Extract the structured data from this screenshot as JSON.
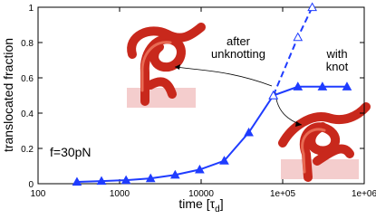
{
  "chart_data": {
    "type": "line",
    "xlabel": {
      "text": "time [τ",
      "subscript": "d",
      "suffix": "]"
    },
    "ylabel": "translocated fraction",
    "xscale": "log",
    "xlim": [
      100,
      1000000
    ],
    "ylim": [
      0,
      1
    ],
    "xticks": [
      100,
      1000,
      10000,
      {
        "value": 100000,
        "label": "1e+05"
      },
      {
        "value": 1000000,
        "label": "1e+06"
      }
    ],
    "yticks": [
      0,
      0.2,
      0.4,
      0.6,
      0.8,
      1
    ],
    "series": [
      {
        "color": "#1f3cff",
        "dash": false,
        "marker": "filled-triangle",
        "x": [
          300,
          600,
          1200,
          2400,
          4800,
          9600,
          19200,
          38400,
          76800,
          153600,
          307200,
          614400
        ],
        "values": [
          0.01,
          0.015,
          0.02,
          0.03,
          0.05,
          0.08,
          0.13,
          0.29,
          0.5,
          0.55,
          0.55,
          0.55
        ]
      },
      {
        "color": "#1f3cff",
        "dash": true,
        "marker": "open-triangle",
        "x": [
          76800,
          153600,
          230400
        ],
        "values": [
          0.5,
          0.83,
          1.0
        ]
      }
    ],
    "annotations": {
      "after": [
        "after",
        "unknotting"
      ],
      "knot": [
        "with",
        "knot"
      ],
      "force": "f=30pN"
    }
  }
}
